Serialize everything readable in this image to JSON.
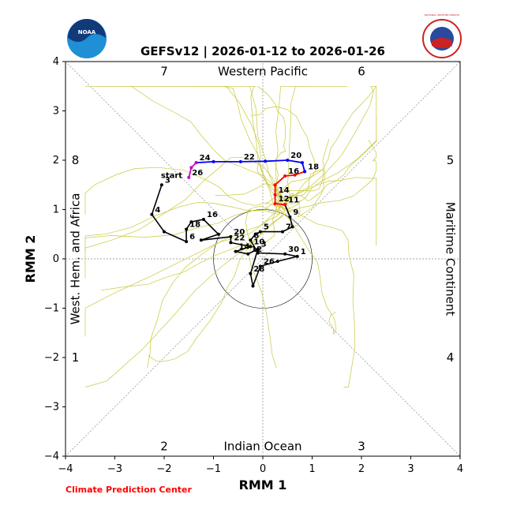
{
  "chart_data": {
    "type": "line",
    "title": "GEFSv12 | 2026-01-12 to 2026-01-26",
    "xlabel": "RMM 1",
    "ylabel": "RMM 2",
    "xlim": [
      -4,
      4
    ],
    "ylim": [
      -4,
      4
    ],
    "xticks": [
      "−4",
      "−3",
      "−2",
      "−1",
      "0",
      "1",
      "2",
      "3",
      "4"
    ],
    "yticks": [
      "−4",
      "−3",
      "−2",
      "−1",
      "0",
      "1",
      "2",
      "3",
      "4"
    ],
    "regions": {
      "top": "Western Pacific",
      "bottom": "Indian Ocean",
      "left": "West. Hem. and Africa",
      "right": "Maritime Continent"
    },
    "phases": [
      {
        "label": "1",
        "x": -3.8,
        "y": -2.0
      },
      {
        "label": "2",
        "x": -2.0,
        "y": -3.8
      },
      {
        "label": "3",
        "x": 2.0,
        "y": -3.8
      },
      {
        "label": "4",
        "x": 3.8,
        "y": -2.0
      },
      {
        "label": "5",
        "x": 3.8,
        "y": 2.0
      },
      {
        "label": "6",
        "x": 2.0,
        "y": 3.8
      },
      {
        "label": "7",
        "x": -2.0,
        "y": 3.8
      },
      {
        "label": "8",
        "x": -3.8,
        "y": 2.0
      }
    ],
    "observed": {
      "start_label": "start",
      "points": [
        {
          "x": -2.05,
          "y": 1.5,
          "label": "3"
        },
        {
          "x": -2.25,
          "y": 0.9,
          "label": "4"
        },
        {
          "x": -2.0,
          "y": 0.55,
          "label": ""
        },
        {
          "x": -1.55,
          "y": 0.35,
          "label": "6"
        },
        {
          "x": -1.55,
          "y": 0.6,
          "label": "18"
        },
        {
          "x": -1.45,
          "y": 0.75,
          "label": ""
        },
        {
          "x": -1.2,
          "y": 0.8,
          "label": "16"
        },
        {
          "x": -0.9,
          "y": 0.5,
          "label": ""
        },
        {
          "x": -1.25,
          "y": 0.38,
          "label": ""
        },
        {
          "x": -0.65,
          "y": 0.45,
          "label": "20"
        },
        {
          "x": -0.65,
          "y": 0.33,
          "label": "22"
        },
        {
          "x": -0.25,
          "y": 0.25,
          "label": "10"
        },
        {
          "x": -0.55,
          "y": 0.15,
          "label": "14"
        },
        {
          "x": -0.3,
          "y": 0.1,
          "label": "12"
        },
        {
          "x": -0.1,
          "y": 0.2,
          "label": "3"
        },
        {
          "x": -0.25,
          "y": -0.3,
          "label": "28"
        },
        {
          "x": -0.2,
          "y": -0.55,
          "label": ""
        },
        {
          "x": -0.05,
          "y": -0.15,
          "label": "26"
        },
        {
          "x": 0.3,
          "y": -0.05,
          "label": ""
        },
        {
          "x": 0.7,
          "y": 0.05,
          "label": "1"
        },
        {
          "x": 0.45,
          "y": 0.1,
          "label": "30"
        },
        {
          "x": -0.1,
          "y": 0.12,
          "label": ""
        },
        {
          "x": -0.25,
          "y": 0.38,
          "label": "8"
        },
        {
          "x": -0.15,
          "y": 0.5,
          "label": ""
        },
        {
          "x": -0.05,
          "y": 0.55,
          "label": "5"
        },
        {
          "x": 0.4,
          "y": 0.55,
          "label": "7"
        },
        {
          "x": 0.6,
          "y": 0.65,
          "label": ""
        },
        {
          "x": 0.55,
          "y": 0.85,
          "label": "9"
        },
        {
          "x": 0.45,
          "y": 1.1,
          "label": "11"
        }
      ]
    },
    "forecast_segments": [
      {
        "color": "#ff0000",
        "points": [
          {
            "x": 0.45,
            "y": 1.1,
            "label": ""
          },
          {
            "x": 0.25,
            "y": 1.12,
            "label": "12"
          },
          {
            "x": 0.25,
            "y": 1.3,
            "label": "14"
          },
          {
            "x": 0.25,
            "y": 1.5,
            "label": ""
          },
          {
            "x": 0.45,
            "y": 1.68,
            "label": "16"
          },
          {
            "x": 0.65,
            "y": 1.7,
            "label": ""
          },
          {
            "x": 0.85,
            "y": 1.77,
            "label": "18"
          }
        ]
      },
      {
        "color": "#0000ff",
        "points": [
          {
            "x": 0.85,
            "y": 1.77,
            "label": ""
          },
          {
            "x": 0.8,
            "y": 1.95,
            "label": ""
          },
          {
            "x": 0.5,
            "y": 2.0,
            "label": "20"
          },
          {
            "x": 0.05,
            "y": 1.98,
            "label": ""
          },
          {
            "x": -0.45,
            "y": 1.97,
            "label": "22"
          },
          {
            "x": -1.0,
            "y": 1.97,
            "label": ""
          },
          {
            "x": -1.35,
            "y": 1.95,
            "label": "24"
          }
        ]
      },
      {
        "color": "#c800c8",
        "points": [
          {
            "x": -1.35,
            "y": 1.95,
            "label": ""
          },
          {
            "x": -1.45,
            "y": 1.85,
            "label": ""
          },
          {
            "x": -1.5,
            "y": 1.65,
            "label": "26"
          }
        ]
      }
    ],
    "ensemble_color": "#c8c83c",
    "ensemble_note": "Thin olive lines show the ensemble member forecasts spreading from about (0.4, 1.2) toward the upper-left and lower-left of the plot."
  },
  "logos": {
    "left": "NOAA",
    "right": "NATIONAL WEATHER SERVICE"
  },
  "credit": "Climate Prediction Center"
}
